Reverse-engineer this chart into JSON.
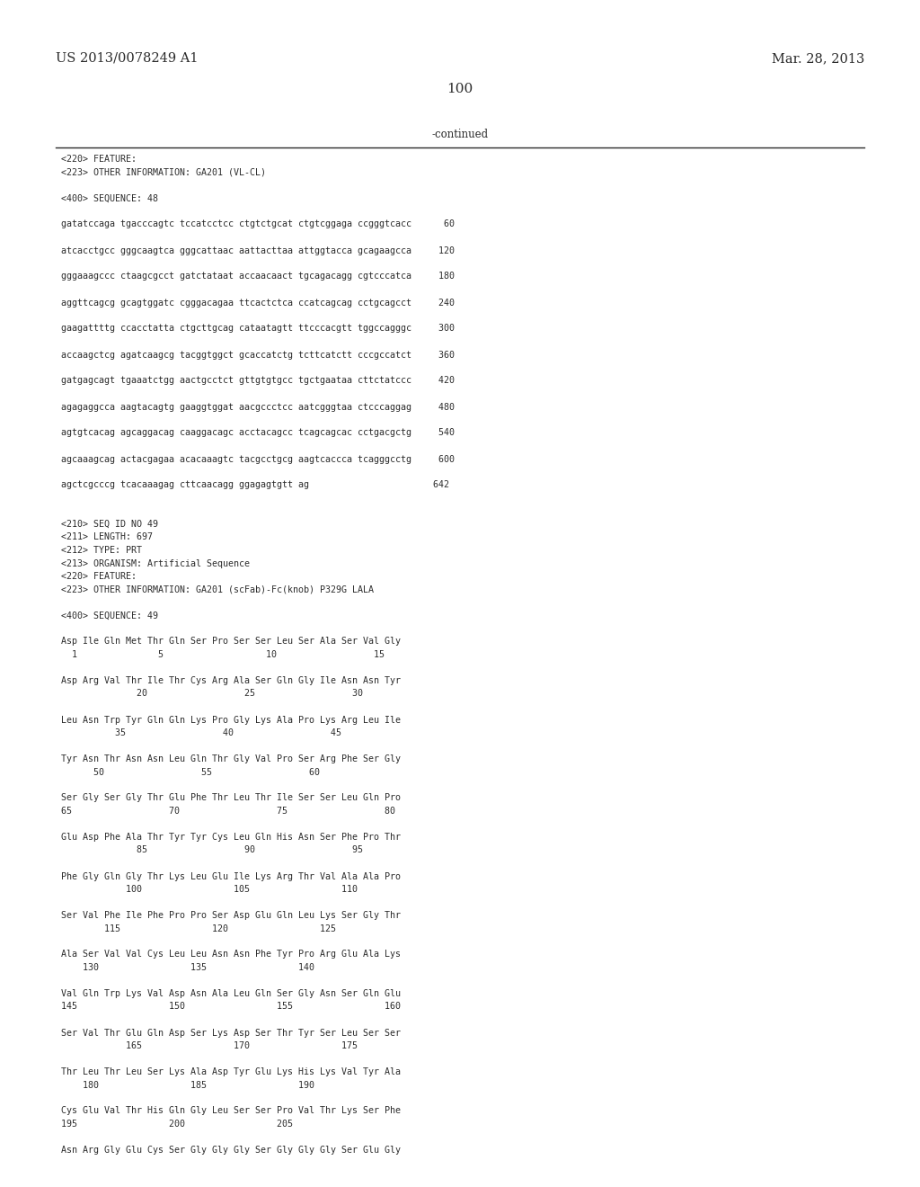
{
  "header_left": "US 2013/0078249 A1",
  "header_right": "Mar. 28, 2013",
  "page_number": "100",
  "continued_text": "-continued",
  "background_color": "#ffffff",
  "text_color": "#2b2b2b",
  "lines": [
    "<220> FEATURE:",
    "<223> OTHER INFORMATION: GA201 (VL-CL)",
    "",
    "<400> SEQUENCE: 48",
    "",
    "gatatccaga tgacccagtc tccatcctcc ctgtctgcat ctgtcggaga ccgggtcacc      60",
    "",
    "atcacctgcc gggcaagtca gggcattaac aattacttaa attggtacca gcagaagcca     120",
    "",
    "gggaaagccc ctaagcgcct gatctataat accaacaact tgcagacagg cgtcccatca     180",
    "",
    "aggttcagcg gcagtggatc cgggacagaa ttcactctca ccatcagcag cctgcagcct     240",
    "",
    "gaagattttg ccacctatta ctgcttgcag cataatagtt ttcccacgtt tggccagggc     300",
    "",
    "accaagctcg agatcaagcg tacggtggct gcaccatctg tcttcatctt cccgccatct     360",
    "",
    "gatgagcagt tgaaatctgg aactgcctct gttgtgtgcc tgctgaataa cttctatccc     420",
    "",
    "agagaggcca aagtacagtg gaaggtggat aacgccctcc aatcgggtaa ctcccaggag     480",
    "",
    "agtgtcacag agcaggacag caaggacagc acctacagcc tcagcagcac cctgacgctg     540",
    "",
    "agcaaagcag actacgagaa acacaaagtc tacgcctgcg aagtcaccca tcagggcctg     600",
    "",
    "agctcgcccg tcacaaagag cttcaacagg ggagagtgtt ag                       642",
    "",
    "",
    "<210> SEQ ID NO 49",
    "<211> LENGTH: 697",
    "<212> TYPE: PRT",
    "<213> ORGANISM: Artificial Sequence",
    "<220> FEATURE:",
    "<223> OTHER INFORMATION: GA201 (scFab)-Fc(knob) P329G LALA",
    "",
    "<400> SEQUENCE: 49",
    "",
    "Asp Ile Gln Met Thr Gln Ser Pro Ser Ser Leu Ser Ala Ser Val Gly",
    "  1               5                   10                  15",
    "",
    "Asp Arg Val Thr Ile Thr Cys Arg Ala Ser Gln Gly Ile Asn Asn Tyr",
    "              20                  25                  30",
    "",
    "Leu Asn Trp Tyr Gln Gln Lys Pro Gly Lys Ala Pro Lys Arg Leu Ile",
    "          35                  40                  45",
    "",
    "Tyr Asn Thr Asn Asn Leu Gln Thr Gly Val Pro Ser Arg Phe Ser Gly",
    "      50                  55                  60",
    "",
    "Ser Gly Ser Gly Thr Glu Phe Thr Leu Thr Ile Ser Ser Leu Gln Pro",
    "65                  70                  75                  80",
    "",
    "Glu Asp Phe Ala Thr Tyr Tyr Cys Leu Gln His Asn Ser Phe Pro Thr",
    "              85                  90                  95",
    "",
    "Phe Gly Gln Gly Thr Lys Leu Glu Ile Lys Arg Thr Val Ala Ala Pro",
    "            100                 105                 110",
    "",
    "Ser Val Phe Ile Phe Pro Pro Ser Asp Glu Gln Leu Lys Ser Gly Thr",
    "        115                 120                 125",
    "",
    "Ala Ser Val Val Cys Leu Leu Asn Asn Phe Tyr Pro Arg Glu Ala Lys",
    "    130                 135                 140",
    "",
    "Val Gln Trp Lys Val Asp Asn Ala Leu Gln Ser Gly Asn Ser Gln Glu",
    "145                 150                 155                 160",
    "",
    "Ser Val Thr Glu Gln Asp Ser Lys Asp Ser Thr Tyr Ser Leu Ser Ser",
    "            165                 170                 175",
    "",
    "Thr Leu Thr Leu Ser Lys Ala Asp Tyr Glu Lys His Lys Val Tyr Ala",
    "    180                 185                 190",
    "",
    "Cys Glu Val Thr His Gln Gly Leu Ser Ser Pro Val Thr Lys Ser Phe",
    "195                 200                 205",
    "",
    "Asn Arg Gly Glu Cys Ser Gly Gly Gly Ser Gly Gly Gly Ser Glu Gly"
  ]
}
